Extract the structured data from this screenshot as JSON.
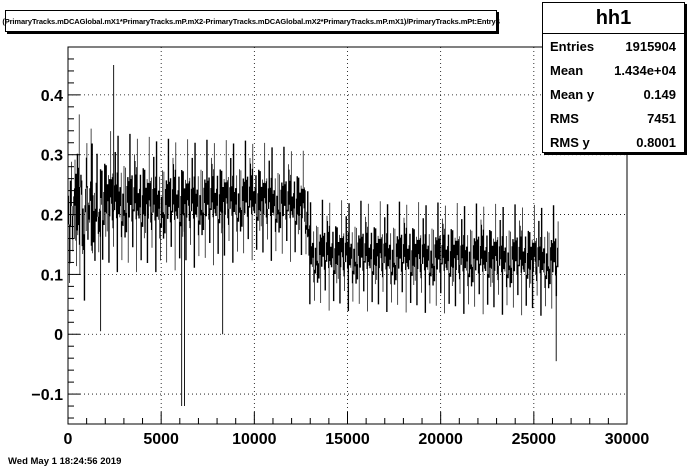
{
  "chart_data": {
    "type": "histogram",
    "title": "(PrimaryTracks.mDCAGlobal.mX1*PrimaryTracks.mP.mX2-PrimaryTracks.mDCAGlobal.mX2*PrimaryTracks.mP.mX1)/PrimaryTracks.mPt:Entry$",
    "xlim": [
      0,
      30000
    ],
    "ylim": [
      -0.15,
      0.48
    ],
    "x_ticks": [
      0,
      5000,
      10000,
      15000,
      20000,
      25000,
      30000
    ],
    "x_tick_labels": [
      "0",
      "5000",
      "10000",
      "15000",
      "20000",
      "25000",
      "30000"
    ],
    "y_ticks": [
      -0.1,
      0,
      0.1,
      0.2,
      0.3,
      0.4
    ],
    "y_tick_labels": [
      "−0.1",
      "0",
      "0.1",
      "0.2",
      "0.3",
      "0.4"
    ],
    "grid": true,
    "x_data_range": [
      0,
      26300
    ],
    "trend": [
      {
        "x": 0,
        "y": 0.21
      },
      {
        "x": 5000,
        "y": 0.2
      },
      {
        "x": 10000,
        "y": 0.21
      },
      {
        "x": 12700,
        "y": 0.2
      },
      {
        "x": 13000,
        "y": 0.12
      },
      {
        "x": 26300,
        "y": 0.11
      }
    ],
    "spread_sigma": [
      {
        "x": 0,
        "y": 0.06
      },
      {
        "x": 13000,
        "y": 0.045
      },
      {
        "x": 26300,
        "y": 0.045
      }
    ],
    "notable_extremes": [
      {
        "x": 2450,
        "y": 0.45
      },
      {
        "x": 6100,
        "y": -0.12
      },
      {
        "x": 6250,
        "y": -0.12
      },
      {
        "x": 1750,
        "y": 0.005
      },
      {
        "x": 8300,
        "y": 0.0
      },
      {
        "x": 26200,
        "y": -0.045
      }
    ]
  },
  "stats": {
    "name": "hh1",
    "rows": [
      {
        "label": "Entries",
        "value": "1915904"
      },
      {
        "label": "Mean",
        "value": "1.434e+04"
      },
      {
        "label": "Mean y",
        "value": "0.149"
      },
      {
        "label": "RMS",
        "value": "7451"
      },
      {
        "label": "RMS y",
        "value": "0.8001"
      }
    ]
  },
  "footer": {
    "timestamp": "Wed May  1 18:24:56 2019"
  },
  "colors": {
    "line": "#000000",
    "grid": "#000000",
    "background": "#ffffff"
  }
}
